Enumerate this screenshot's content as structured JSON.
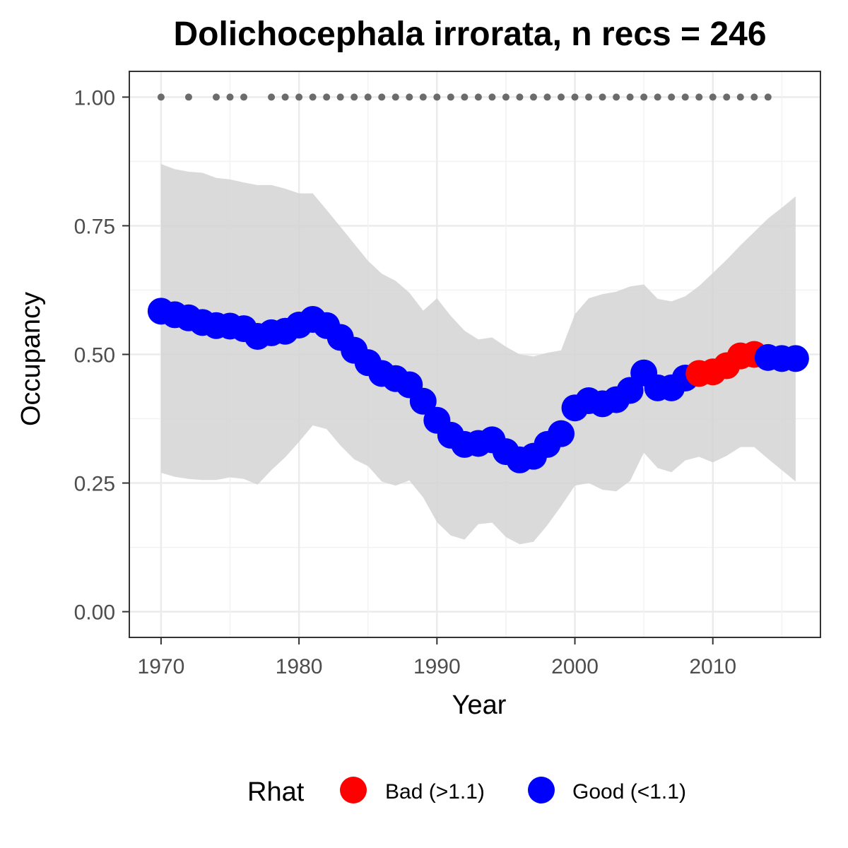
{
  "chart_data": {
    "type": "line",
    "title": "Dolichocephala irrorata, n recs = 246",
    "xlabel": "Year",
    "ylabel": "Occupancy",
    "xlim": [
      1967.7,
      2017.8
    ],
    "ylim": [
      -0.05,
      1.05
    ],
    "x_ticks": [
      1970,
      1980,
      1990,
      2000,
      2010
    ],
    "x_tick_labels": [
      "1970",
      "1980",
      "1990",
      "2000",
      "2010"
    ],
    "y_ticks": [
      0,
      0.25,
      0.5,
      0.75,
      1
    ],
    "y_tick_labels": [
      "0.00",
      "0.25",
      "0.50",
      "0.75",
      "1.00"
    ],
    "grid": true,
    "legend": {
      "title": "Rhat",
      "position": "bottom",
      "entries": [
        {
          "label": "Bad (>1.1)",
          "color": "#ff0000"
        },
        {
          "label": "Good (<1.1)",
          "color": "#0000ff"
        }
      ]
    },
    "colors": {
      "bad": "#ff0000",
      "good": "#0000ff",
      "ribbon": "#d3d3d3",
      "records": "#6b6b6b"
    },
    "series": [
      {
        "name": "Occupancy",
        "x": [
          1970,
          1971,
          1972,
          1973,
          1974,
          1975,
          1976,
          1977,
          1978,
          1979,
          1980,
          1981,
          1982,
          1983,
          1984,
          1985,
          1986,
          1987,
          1988,
          1989,
          1990,
          1991,
          1992,
          1993,
          1994,
          1995,
          1996,
          1997,
          1998,
          1999,
          2000,
          2001,
          2002,
          2003,
          2004,
          2005,
          2006,
          2007,
          2008,
          2009,
          2010,
          2011,
          2012,
          2013,
          2014,
          2015,
          2016
        ],
        "y": [
          0.584,
          0.577,
          0.571,
          0.562,
          0.556,
          0.555,
          0.55,
          0.535,
          0.542,
          0.545,
          0.557,
          0.568,
          0.556,
          0.533,
          0.508,
          0.484,
          0.463,
          0.453,
          0.441,
          0.409,
          0.372,
          0.343,
          0.325,
          0.327,
          0.334,
          0.311,
          0.295,
          0.302,
          0.325,
          0.346,
          0.396,
          0.41,
          0.404,
          0.412,
          0.43,
          0.464,
          0.435,
          0.435,
          0.454,
          0.463,
          0.466,
          0.478,
          0.497,
          0.5,
          0.494,
          0.492,
          0.492
        ],
        "rhat": [
          "Good",
          "Good",
          "Good",
          "Good",
          "Good",
          "Good",
          "Good",
          "Good",
          "Good",
          "Good",
          "Good",
          "Good",
          "Good",
          "Good",
          "Good",
          "Good",
          "Good",
          "Good",
          "Good",
          "Good",
          "Good",
          "Good",
          "Good",
          "Good",
          "Good",
          "Good",
          "Good",
          "Good",
          "Good",
          "Good",
          "Good",
          "Good",
          "Good",
          "Good",
          "Good",
          "Good",
          "Good",
          "Good",
          "Good",
          "Bad",
          "Bad",
          "Bad",
          "Bad",
          "Bad",
          "Good",
          "Good",
          "Good"
        ],
        "lower": [
          0.27,
          0.262,
          0.258,
          0.256,
          0.256,
          0.261,
          0.258,
          0.247,
          0.275,
          0.3,
          0.33,
          0.362,
          0.355,
          0.323,
          0.296,
          0.283,
          0.253,
          0.245,
          0.255,
          0.222,
          0.174,
          0.148,
          0.14,
          0.17,
          0.173,
          0.145,
          0.131,
          0.136,
          0.168,
          0.205,
          0.245,
          0.25,
          0.237,
          0.234,
          0.254,
          0.309,
          0.279,
          0.271,
          0.294,
          0.301,
          0.29,
          0.303,
          0.32,
          0.32,
          0.297,
          0.275,
          0.253
        ],
        "upper": [
          0.87,
          0.86,
          0.855,
          0.853,
          0.843,
          0.84,
          0.834,
          0.829,
          0.829,
          0.822,
          0.813,
          0.813,
          0.781,
          0.748,
          0.715,
          0.682,
          0.657,
          0.643,
          0.62,
          0.585,
          0.609,
          0.575,
          0.546,
          0.529,
          0.533,
          0.515,
          0.5,
          0.496,
          0.503,
          0.508,
          0.578,
          0.609,
          0.617,
          0.622,
          0.632,
          0.636,
          0.608,
          0.603,
          0.613,
          0.633,
          0.658,
          0.684,
          0.712,
          0.738,
          0.764,
          0.785,
          0.807
        ]
      }
    ],
    "record_years": [
      1970,
      1972,
      1974,
      1975,
      1976,
      1978,
      1979,
      1980,
      1981,
      1982,
      1983,
      1984,
      1985,
      1986,
      1987,
      1988,
      1989,
      1990,
      1991,
      1992,
      1993,
      1994,
      1995,
      1996,
      1997,
      1998,
      1999,
      2000,
      2001,
      2002,
      2003,
      2004,
      2005,
      2006,
      2007,
      2008,
      2009,
      2010,
      2011,
      2012,
      2013,
      2014
    ],
    "record_value": 1.0
  }
}
